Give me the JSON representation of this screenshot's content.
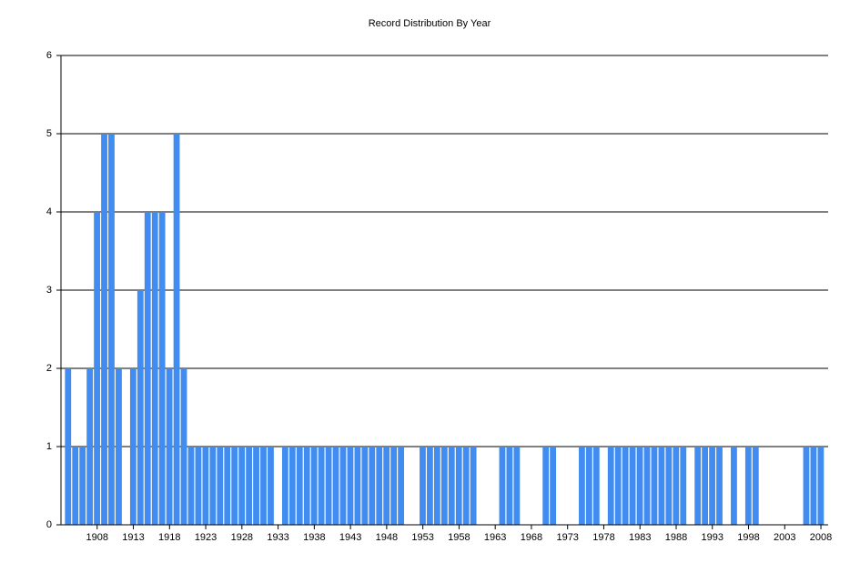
{
  "chart_data": {
    "type": "bar",
    "title": "Record Distribution By Year",
    "x": [
      1904,
      1905,
      1906,
      1907,
      1908,
      1909,
      1910,
      1911,
      1913,
      1914,
      1915,
      1916,
      1917,
      1918,
      1919,
      1920,
      1921,
      1922,
      1923,
      1924,
      1925,
      1926,
      1927,
      1928,
      1929,
      1930,
      1931,
      1932,
      1934,
      1935,
      1936,
      1937,
      1938,
      1939,
      1940,
      1941,
      1942,
      1943,
      1944,
      1945,
      1946,
      1947,
      1948,
      1949,
      1950,
      1953,
      1954,
      1955,
      1956,
      1957,
      1958,
      1959,
      1960,
      1964,
      1965,
      1966,
      1970,
      1971,
      1975,
      1976,
      1977,
      1979,
      1980,
      1981,
      1982,
      1983,
      1984,
      1985,
      1986,
      1987,
      1988,
      1989,
      1991,
      1992,
      1993,
      1994,
      1996,
      1998,
      1999,
      2006,
      2007,
      2008
    ],
    "values": [
      2,
      1,
      1,
      2,
      4,
      5,
      5,
      2,
      2,
      3,
      4,
      4,
      4,
      2,
      5,
      2,
      1,
      1,
      1,
      1,
      1,
      1,
      1,
      1,
      1,
      1,
      1,
      1,
      1,
      1,
      1,
      1,
      1,
      1,
      1,
      1,
      1,
      1,
      1,
      1,
      1,
      1,
      1,
      1,
      1,
      1,
      1,
      1,
      1,
      1,
      1,
      1,
      1,
      1,
      1,
      1,
      1,
      1,
      1,
      1,
      1,
      1,
      1,
      1,
      1,
      1,
      1,
      1,
      1,
      1,
      1,
      1,
      1,
      1,
      1,
      1,
      1,
      1,
      1,
      1,
      1,
      1
    ],
    "color": "#418cf0",
    "xlim": [
      1903,
      2009
    ],
    "xticks": [
      1908,
      1913,
      1918,
      1923,
      1928,
      1933,
      1938,
      1943,
      1948,
      1953,
      1958,
      1963,
      1968,
      1973,
      1978,
      1983,
      1988,
      1993,
      1998,
      2003,
      2008
    ],
    "ylim": [
      0,
      6
    ],
    "yticks": [
      0,
      1,
      2,
      3,
      4,
      5,
      6
    ],
    "grid": true
  }
}
